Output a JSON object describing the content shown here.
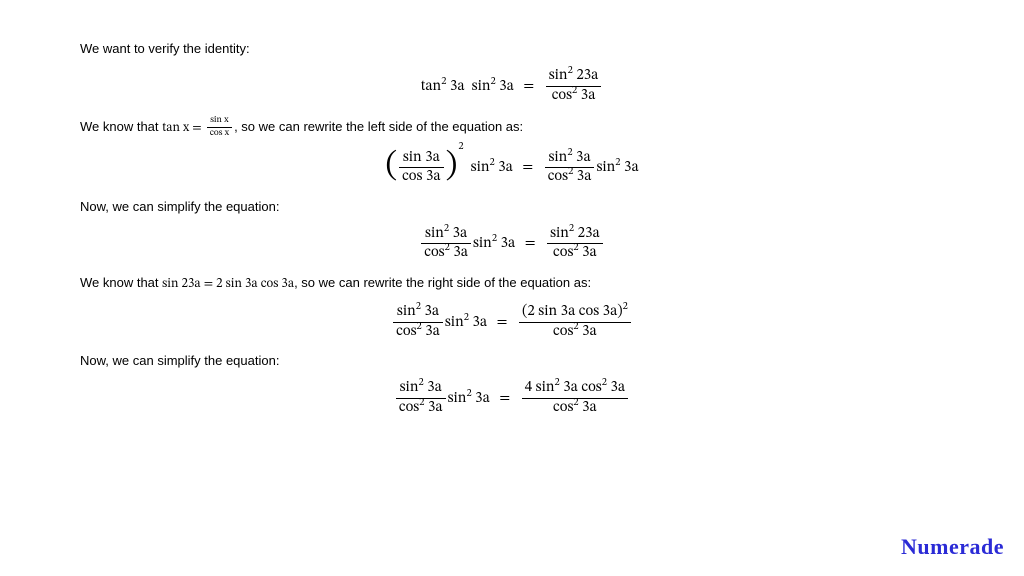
{
  "text": {
    "l1": "We want to verify the identity:",
    "l2a": "We know that ",
    "l2b": ", so we can rewrite the left side of the equation as:",
    "l3": "Now, we can simplify the equation:",
    "l4a": "We know that ",
    "l4b": ", so we can rewrite the right side of the equation as:",
    "l5": "Now, we can simplify the equation:"
  },
  "math": {
    "tan2_3a": "tan",
    "sin2_3a": "sin",
    "cos2_3a": "cos",
    "sin2_23a": "sin",
    "arg_3a": "3a",
    "arg_23a": "23a",
    "sq": "2",
    "tanx": "tan x",
    "sinx": "sin x",
    "cosx": "cos x",
    "sin3a": "sin 3a",
    "cos3a": "cos 3a",
    "sin23a_plain": "sin 23a",
    "two": "2",
    "twosin3acos3a": "2 sin 3a cos 3a",
    "twosin3acos3a_paren_sq": "(2 sin 3a cos 3a)",
    "four": "4"
  },
  "style": {
    "background": "#ffffff",
    "text_color": "#000000",
    "body_fontsize": 13,
    "eq_fontsize": 15,
    "logo_color": "#2b2bd6",
    "logo_fontsize": 22
  },
  "brand": {
    "logo": "Numerade"
  }
}
